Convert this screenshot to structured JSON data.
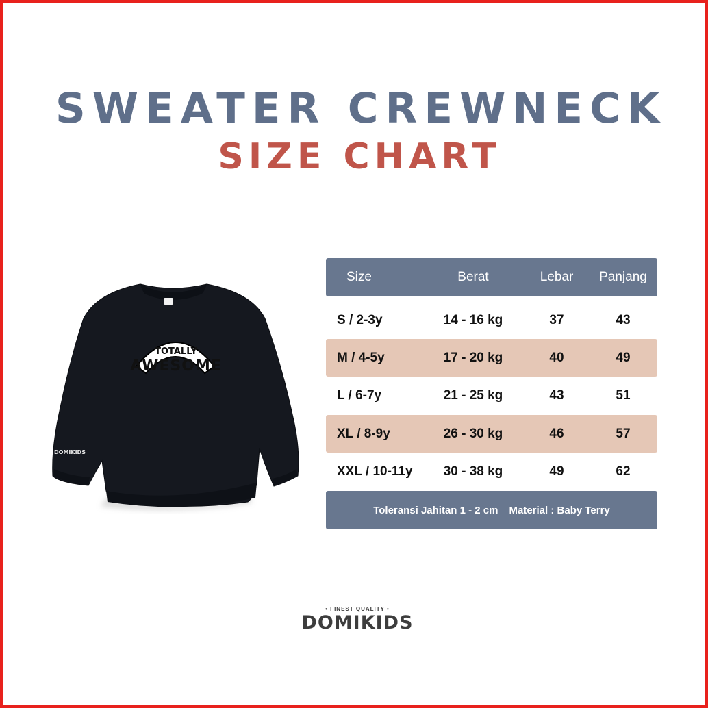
{
  "title": {
    "line1": "SWEATER CREWNECK",
    "line2": "SIZE CHART"
  },
  "colors": {
    "border": "#e8211d",
    "title_blue": "#5f6f8a",
    "title_red": "#c0554a",
    "header_bg": "#68778f",
    "alt_row_bg": "#e5c7b6"
  },
  "product": {
    "graphic_top": "TOTALLY",
    "graphic_main": "AWESOME",
    "sleeve_label": "DOMIKIDS"
  },
  "table": {
    "headers": [
      "Size",
      "Berat",
      "Lebar",
      "Panjang"
    ],
    "rows": [
      [
        "S / 2-3y",
        "14 - 16 kg",
        "37",
        "43"
      ],
      [
        "M / 4-5y",
        "17 - 20 kg",
        "40",
        "49"
      ],
      [
        "L / 6-7y",
        "21 - 25 kg",
        "43",
        "51"
      ],
      [
        "XL / 8-9y",
        "26 - 30 kg",
        "46",
        "57"
      ],
      [
        "XXL / 10-11y",
        "30 - 38 kg",
        "49",
        "62"
      ]
    ],
    "footer": {
      "tolerance": "Toleransi Jahitan 1 - 2 cm",
      "material": "Material : Baby Terry"
    }
  },
  "brand": {
    "tagline": "• FINEST QUALITY •",
    "name": "DOMIKIDS"
  }
}
